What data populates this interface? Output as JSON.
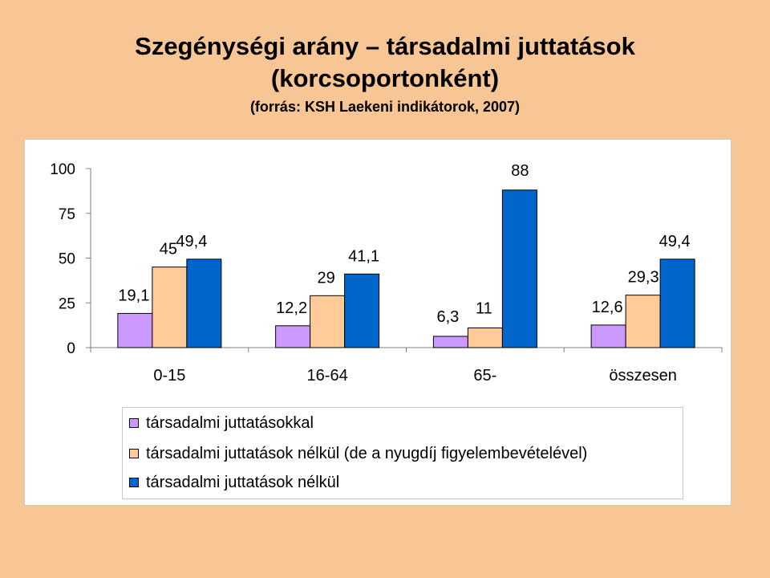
{
  "slide": {
    "title_line1": "Szegénységi arány – társadalmi juttatások",
    "title_line2": "(korcsoportonként)",
    "subtitle": "(forrás: KSH Laekeni indikátorok, 2007)"
  },
  "chart_data": {
    "type": "bar",
    "categories": [
      "0-15",
      "16-64",
      "65-",
      "összesen"
    ],
    "series": [
      {
        "name": "társadalmi juttatásokkal",
        "values": [
          19.1,
          12.2,
          6.3,
          12.6
        ],
        "labels": [
          "19,1",
          "12,2",
          "6,3",
          "12,6"
        ],
        "color": "#cc99ff"
      },
      {
        "name": "társadalmi juttatások nélkül (de a nyugdíj figyelembevételével)",
        "values": [
          45,
          29,
          11,
          29.3
        ],
        "labels": [
          "45",
          "29",
          "11",
          "29,3"
        ],
        "color": "#ffcc99"
      },
      {
        "name": "társadalmi juttatások nélkül",
        "values": [
          49.4,
          41.1,
          88,
          49.4
        ],
        "labels": [
          "49,4",
          "41,1",
          "88",
          "49,4"
        ],
        "color": "#0066cc"
      }
    ],
    "yticks": [
      "0",
      "25",
      "50",
      "75",
      "100"
    ],
    "ylim": [
      0,
      100
    ],
    "grid": false,
    "legend_position": "bottom"
  }
}
